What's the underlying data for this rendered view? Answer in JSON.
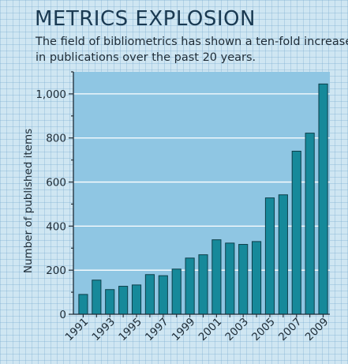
{
  "title": "METRICS EXPLOSION",
  "subtitle_lines": [
    "The field of bibliometrics has shown a ten-fold increase",
    "in publications over the past 20 years."
  ],
  "colors": {
    "bar": "#16899a",
    "bar_edge": "#0e3f4a",
    "plot_bg": "#8fc6e3",
    "axis": "#1d2b36",
    "grid": "#ffffff"
  },
  "chart_data": {
    "type": "bar",
    "title": "METRICS EXPLOSION",
    "ylabel": "Number of published items",
    "xlabel": "",
    "categories": [
      "1991",
      "1992",
      "1993",
      "1994",
      "1995",
      "1996",
      "1997",
      "1998",
      "1999",
      "2000",
      "2001",
      "2002",
      "2003",
      "2004",
      "2005",
      "2006",
      "2007",
      "2008",
      "2009"
    ],
    "x_tick_labels": [
      "1991",
      "1993",
      "1995",
      "1997",
      "1999",
      "2001",
      "2003",
      "2005",
      "2007",
      "2009"
    ],
    "values": [
      90,
      155,
      112,
      127,
      133,
      180,
      175,
      205,
      255,
      270,
      338,
      323,
      317,
      330,
      528,
      542,
      740,
      822,
      1045
    ],
    "ylim": [
      0,
      1100
    ],
    "y_ticks": [
      0,
      200,
      400,
      600,
      800,
      1000
    ],
    "y_tick_labels": [
      "0",
      "200",
      "400",
      "600",
      "800",
      "1,000"
    ],
    "grid": true
  }
}
